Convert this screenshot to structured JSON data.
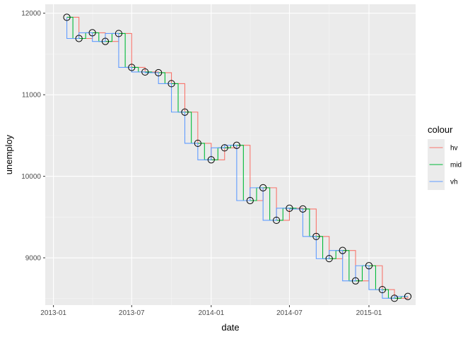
{
  "chart_data": {
    "type": "line",
    "subtype": "step",
    "xlabel": "date",
    "ylabel": "unemploy",
    "x_tick_labels": [
      "2013-01",
      "2013-07",
      "2014-01",
      "2014-07",
      "2015-01"
    ],
    "x_ticks": [
      "2013-01-01",
      "2013-07-01",
      "2014-01-01",
      "2014-07-01",
      "2015-01-01"
    ],
    "y_ticks": [
      9000,
      10000,
      11000,
      12000
    ],
    "y_tick_labels": [
      "9000",
      "10000",
      "11000",
      "12000"
    ],
    "xlim": [
      "2012-12-13",
      "2015-04-19"
    ],
    "ylim": [
      8420,
      12110
    ],
    "grid": true,
    "legend": {
      "title": "colour",
      "position": "right"
    },
    "points": {
      "dates": [
        "2013-02-01",
        "2013-03-01",
        "2013-04-01",
        "2013-05-01",
        "2013-06-01",
        "2013-07-01",
        "2013-08-01",
        "2013-09-01",
        "2013-10-01",
        "2013-11-01",
        "2013-12-01",
        "2014-01-01",
        "2014-02-01",
        "2014-03-01",
        "2014-04-01",
        "2014-05-01",
        "2014-06-01",
        "2014-07-01",
        "2014-08-01",
        "2014-09-01",
        "2014-10-01",
        "2014-11-01",
        "2014-12-01",
        "2015-01-01",
        "2015-02-01",
        "2015-03-01",
        "2015-04-01"
      ],
      "unemploy": [
        11950,
        11690,
        11760,
        11654,
        11751,
        11335,
        11279,
        11270,
        11136,
        10787,
        10404,
        10202,
        10349,
        10380,
        9702,
        9859,
        9460,
        9608,
        9599,
        9262,
        8990,
        9090,
        8717,
        8903,
        8610,
        8504,
        8526
      ]
    },
    "series": [
      {
        "name": "hv",
        "color": "#F8766D",
        "direction": "hv"
      },
      {
        "name": "mid",
        "color": "#00BA38",
        "direction": "mid"
      },
      {
        "name": "vh",
        "color": "#619CFF",
        "direction": "vh"
      }
    ]
  }
}
